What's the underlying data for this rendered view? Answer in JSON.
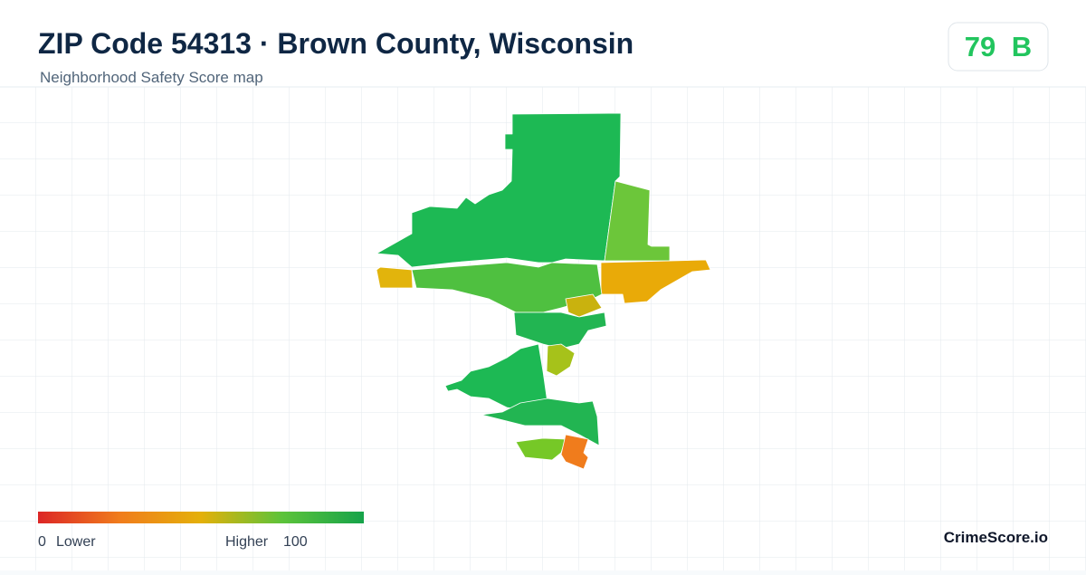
{
  "header": {
    "title": "ZIP Code 54313 · Brown County, Wisconsin",
    "subtitle": "Neighborhood Safety Score map"
  },
  "score_badge": {
    "score": "79",
    "grade": "B"
  },
  "legend": {
    "min": "0",
    "min_label": "Lower",
    "max_label": "Higher",
    "max": "100"
  },
  "brand": "CrimeScore.io"
}
